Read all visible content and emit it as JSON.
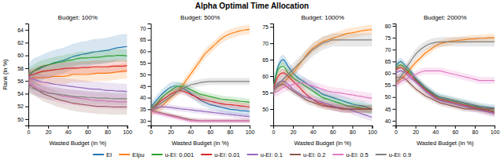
{
  "title": "Alpha Optimal Time Allocation",
  "chart_data": [
    {
      "type": "line",
      "title": "Budget: 100%",
      "xlabel": "Wasted Budget (in %)",
      "ylabel": "Rank (in %)",
      "x": [
        0,
        5,
        10,
        15,
        20,
        25,
        30,
        35,
        40,
        45,
        50,
        55,
        60,
        65,
        70,
        75,
        80,
        85,
        90,
        95,
        100
      ],
      "xlim": [
        0,
        100
      ],
      "xticks": [
        0,
        20,
        40,
        60,
        80,
        100
      ],
      "ylim": [
        49,
        65
      ],
      "yticks": [
        50,
        52,
        54,
        56,
        58,
        60,
        62,
        64
      ],
      "grid": false,
      "series": [
        {
          "name": "EI",
          "color": "#1f77b4",
          "error": 2.0,
          "values": [
            56.5,
            57.5,
            57.8,
            58.2,
            58.5,
            58.8,
            59.0,
            59.2,
            59.5,
            59.8,
            60.0,
            60.2,
            60.3,
            60.5,
            60.6,
            60.7,
            60.8,
            61.0,
            61.2,
            61.3,
            61.4
          ]
        },
        {
          "name": "EIpu",
          "color": "#ff7f0e",
          "error": 1.2,
          "values": [
            56.2,
            56.5,
            56.5,
            56.5,
            56.5,
            56.7,
            56.7,
            56.7,
            56.8,
            57.0,
            57.0,
            57.0,
            57.0,
            57.1,
            57.2,
            57.2,
            57.2,
            57.3,
            57.4,
            57.5,
            57.6
          ]
        },
        {
          "name": "u-EI: 0.001",
          "color": "#2ca02c",
          "error": 1.0,
          "values": [
            57.0,
            57.5,
            58.0,
            58.3,
            58.5,
            58.7,
            58.9,
            59.0,
            59.2,
            59.3,
            59.5,
            59.6,
            59.6,
            59.7,
            59.7,
            59.8,
            59.9,
            59.9,
            60.0,
            60.0,
            59.9
          ]
        },
        {
          "name": "u-EI: 0.01",
          "color": "#d62728",
          "error": 1.0,
          "values": [
            56.8,
            57.0,
            57.3,
            57.5,
            57.6,
            57.7,
            57.8,
            57.9,
            58.0,
            58.0,
            58.0,
            58.1,
            58.1,
            58.2,
            58.2,
            58.2,
            58.2,
            58.3,
            58.3,
            58.3,
            58.4
          ]
        },
        {
          "name": "u-EI: 0.1",
          "color": "#9467bd",
          "error": 1.2,
          "values": [
            56.5,
            56.3,
            56.0,
            55.8,
            55.7,
            55.5,
            55.4,
            55.3,
            55.2,
            55.1,
            55.0,
            54.9,
            54.8,
            54.7,
            54.7,
            54.6,
            54.5,
            54.5,
            54.4,
            54.4,
            54.3
          ]
        },
        {
          "name": "u-EI: 0.2",
          "color": "#8c564b",
          "error": 1.2,
          "values": [
            55.5,
            55.0,
            54.5,
            54.0,
            53.7,
            53.4,
            53.1,
            52.9,
            52.7,
            52.5,
            52.4,
            52.3,
            52.2,
            52.1,
            52.0,
            52.0,
            52.0,
            51.9,
            51.9,
            51.9,
            51.9
          ]
        },
        {
          "name": "u-EI: 0.5",
          "color": "#e377c2",
          "error": 1.2,
          "values": [
            55.8,
            55.3,
            54.8,
            54.5,
            54.2,
            54.0,
            53.8,
            53.6,
            53.5,
            53.4,
            53.3,
            53.2,
            53.1,
            53.0,
            52.9,
            52.9,
            52.8,
            52.8,
            52.7,
            52.7,
            52.7
          ]
        },
        {
          "name": "u-EI: 0.9",
          "color": "#7f7f7f",
          "error": 1.0,
          "values": [
            55.0,
            54.8,
            54.5,
            54.3,
            54.1,
            54.0,
            53.9,
            53.8,
            53.7,
            53.6,
            53.5,
            53.5,
            53.4,
            53.4,
            53.3,
            53.3,
            53.3,
            53.2,
            53.2,
            53.2,
            53.2
          ]
        }
      ]
    },
    {
      "type": "line",
      "title": "Budget: 500%",
      "xlabel": "Wasted Budget (in %)",
      "x": [
        0,
        5,
        10,
        15,
        20,
        25,
        30,
        35,
        40,
        45,
        50,
        55,
        60,
        65,
        70,
        75,
        80,
        85,
        90,
        95,
        100
      ],
      "xlim": [
        0,
        100
      ],
      "xticks": [
        0,
        20,
        40,
        60,
        80,
        100
      ],
      "ylim": [
        28,
        72
      ],
      "yticks": [
        30,
        35,
        40,
        45,
        50,
        55,
        60,
        65,
        70
      ],
      "grid": false,
      "series": [
        {
          "name": "EI",
          "color": "#1f77b4",
          "error": 2.0,
          "values": [
            36.0,
            38.5,
            41.0,
            43.0,
            44.5,
            45.0,
            44.5,
            43.5,
            42.0,
            40.5,
            39.0,
            38.0,
            37.0,
            36.5,
            36.0,
            35.5,
            35.0,
            34.8,
            34.5,
            34.3,
            34.0
          ]
        },
        {
          "name": "EIpu",
          "color": "#ff7f0e",
          "error": 2.0,
          "values": [
            34.0,
            35.0,
            36.0,
            38.0,
            40.0,
            42.0,
            44.0,
            47.0,
            50.0,
            53.0,
            56.0,
            59.0,
            61.0,
            63.0,
            65.0,
            66.5,
            67.5,
            68.2,
            68.8,
            69.2,
            69.5
          ]
        },
        {
          "name": "u-EI: 0.001",
          "color": "#2ca02c",
          "error": 1.5,
          "values": [
            35.5,
            37.0,
            39.5,
            41.5,
            43.0,
            44.5,
            45.0,
            44.5,
            43.5,
            42.5,
            41.5,
            41.0,
            40.5,
            40.0,
            39.5,
            39.2,
            39.0,
            38.8,
            38.5,
            38.3,
            38.0
          ]
        },
        {
          "name": "u-EI: 0.01",
          "color": "#d62728",
          "error": 1.5,
          "values": [
            35.0,
            36.5,
            38.5,
            40.0,
            41.5,
            42.5,
            43.0,
            42.5,
            41.5,
            40.5,
            39.5,
            39.0,
            38.5,
            38.0,
            37.5,
            37.2,
            37.0,
            36.8,
            36.5,
            36.3,
            36.0
          ]
        },
        {
          "name": "u-EI: 0.1",
          "color": "#9467bd",
          "error": 1.2,
          "values": [
            35.0,
            35.5,
            36.0,
            36.0,
            35.8,
            35.5,
            35.2,
            35.0,
            34.8,
            34.5,
            34.3,
            34.0,
            33.8,
            33.5,
            33.3,
            33.0,
            32.8,
            32.5,
            32.3,
            32.0,
            31.8
          ]
        },
        {
          "name": "u-EI: 0.2",
          "color": "#8c564b",
          "error": 1.0,
          "values": [
            34.5,
            34.0,
            33.5,
            33.0,
            32.5,
            32.0,
            31.5,
            31.0,
            30.5,
            30.3,
            30.0,
            30.0,
            30.0,
            30.0,
            30.0,
            30.0,
            30.0,
            30.0,
            30.0,
            30.0,
            30.0
          ]
        },
        {
          "name": "u-EI: 0.5",
          "color": "#e377c2",
          "error": 1.0,
          "values": [
            34.0,
            33.5,
            33.0,
            32.5,
            32.0,
            31.5,
            31.0,
            30.5,
            30.0,
            30.0,
            30.0,
            30.0,
            30.0,
            30.0,
            30.0,
            30.0,
            30.0,
            30.0,
            30.0,
            30.0,
            30.0
          ]
        },
        {
          "name": "u-EI: 0.9",
          "color": "#7f7f7f",
          "error": 1.5,
          "values": [
            35.0,
            36.0,
            37.5,
            39.0,
            40.5,
            42.0,
            43.5,
            44.5,
            45.5,
            46.0,
            46.5,
            46.8,
            47.0,
            47.0,
            47.0,
            47.0,
            47.0,
            47.0,
            47.0,
            47.0,
            47.0
          ]
        }
      ]
    },
    {
      "type": "line",
      "title": "Budget: 1000%",
      "xlabel": "Wasted Budget (in %)",
      "x": [
        0,
        5,
        10,
        15,
        20,
        25,
        30,
        35,
        40,
        45,
        50,
        55,
        60,
        65,
        70,
        75,
        80,
        85,
        90,
        95,
        100
      ],
      "xlim": [
        0,
        100
      ],
      "xticks": [
        0,
        20,
        40,
        60,
        80,
        100
      ],
      "ylim": [
        45,
        76
      ],
      "yticks": [
        50,
        55,
        60,
        65,
        70,
        75
      ],
      "grid": false,
      "series": [
        {
          "name": "EI",
          "color": "#1f77b4",
          "error": 1.5,
          "values": [
            56.5,
            63.0,
            65.0,
            63.0,
            61.0,
            59.5,
            58.5,
            57.5,
            56.5,
            55.5,
            54.5,
            54.0,
            53.5,
            53.0,
            52.5,
            52.0,
            51.5,
            51.2,
            51.0,
            50.5,
            50.0
          ]
        },
        {
          "name": "EIpu",
          "color": "#ff7f0e",
          "error": 1.5,
          "values": [
            56.0,
            57.0,
            58.0,
            59.5,
            61.0,
            63.0,
            65.0,
            67.0,
            68.5,
            69.5,
            70.5,
            71.0,
            71.5,
            72.0,
            72.5,
            73.0,
            73.2,
            73.5,
            73.8,
            74.0,
            74.2
          ]
        },
        {
          "name": "u-EI: 0.001",
          "color": "#2ca02c",
          "error": 1.5,
          "values": [
            56.0,
            62.0,
            63.0,
            61.0,
            59.5,
            58.5,
            57.5,
            56.5,
            55.5,
            54.5,
            53.5,
            53.0,
            52.5,
            52.0,
            51.5,
            51.0,
            50.8,
            50.5,
            50.3,
            50.0,
            50.0
          ]
        },
        {
          "name": "u-EI: 0.01",
          "color": "#d62728",
          "error": 1.2,
          "values": [
            56.0,
            60.0,
            61.0,
            60.0,
            58.5,
            57.0,
            55.5,
            54.0,
            53.0,
            52.0,
            51.5,
            51.0,
            50.8,
            50.5,
            50.3,
            50.0,
            50.0,
            50.0,
            50.0,
            50.0,
            50.0
          ]
        },
        {
          "name": "u-EI: 0.1",
          "color": "#9467bd",
          "error": 1.2,
          "values": [
            55.5,
            58.0,
            58.5,
            57.5,
            56.0,
            55.0,
            54.0,
            53.5,
            53.0,
            52.5,
            52.0,
            51.5,
            51.0,
            50.5,
            50.0,
            50.0,
            49.5,
            49.0,
            48.5,
            48.0,
            47.5
          ]
        },
        {
          "name": "u-EI: 0.2",
          "color": "#8c564b",
          "error": 1.0,
          "values": [
            55.5,
            57.0,
            57.5,
            56.5,
            55.5,
            54.5,
            53.5,
            52.5,
            52.0,
            51.5,
            51.0,
            50.8,
            50.5,
            50.3,
            50.0,
            50.0,
            50.0,
            50.0,
            50.0,
            50.0,
            50.0
          ]
        },
        {
          "name": "u-EI: 0.5",
          "color": "#e377c2",
          "error": 1.5,
          "values": [
            55.0,
            55.5,
            56.5,
            57.0,
            57.5,
            57.8,
            58.0,
            57.5,
            57.0,
            56.5,
            56.0,
            55.5,
            55.2,
            55.0,
            54.8,
            54.5,
            54.3,
            54.0,
            53.8,
            53.5,
            53.3
          ]
        },
        {
          "name": "u-EI: 0.9",
          "color": "#7f7f7f",
          "error": 2.0,
          "values": [
            55.5,
            57.5,
            59.0,
            60.5,
            62.0,
            63.5,
            65.0,
            66.5,
            68.0,
            69.0,
            70.0,
            70.5,
            71.0,
            71.0,
            71.0,
            71.0,
            71.0,
            71.0,
            71.0,
            71.0,
            71.0
          ]
        }
      ]
    },
    {
      "type": "line",
      "title": "Budget: 2000%",
      "xlabel": "Wasted Budget (in %)",
      "x": [
        0,
        5,
        10,
        15,
        20,
        25,
        30,
        35,
        40,
        45,
        50,
        55,
        60,
        65,
        70,
        75,
        80,
        85,
        90,
        95,
        100
      ],
      "xlim": [
        0,
        100
      ],
      "xticks": [
        0,
        20,
        40,
        60,
        80,
        100
      ],
      "ylim": [
        38,
        81
      ],
      "yticks": [
        40,
        45,
        50,
        55,
        60,
        65,
        70,
        75,
        80
      ],
      "grid": false,
      "series": [
        {
          "name": "EI",
          "color": "#1f77b4",
          "error": 1.5,
          "values": [
            63.0,
            65.0,
            63.0,
            61.0,
            58.0,
            56.0,
            54.0,
            52.5,
            51.0,
            50.0,
            49.5,
            49.0,
            48.5,
            48.0,
            47.5,
            47.0,
            46.5,
            46.0,
            45.8,
            45.5,
            45.3
          ]
        },
        {
          "name": "EIpu",
          "color": "#ff7f0e",
          "error": 1.5,
          "values": [
            56.0,
            57.5,
            59.5,
            62.0,
            64.5,
            66.5,
            68.5,
            70.0,
            71.5,
            72.5,
            73.0,
            73.5,
            73.8,
            74.0,
            74.2,
            74.5,
            74.5,
            74.8,
            74.8,
            75.0,
            75.0
          ]
        },
        {
          "name": "u-EI: 0.001",
          "color": "#2ca02c",
          "error": 1.5,
          "values": [
            62.0,
            63.5,
            62.0,
            60.0,
            57.5,
            55.5,
            53.5,
            52.0,
            50.5,
            49.5,
            49.0,
            48.5,
            48.0,
            47.5,
            47.0,
            46.5,
            46.0,
            45.5,
            45.0,
            44.5,
            44.0
          ]
        },
        {
          "name": "u-EI: 0.01",
          "color": "#d62728",
          "error": 1.5,
          "values": [
            61.5,
            62.5,
            61.0,
            59.0,
            57.0,
            55.0,
            53.0,
            51.5,
            50.0,
            49.0,
            48.5,
            48.0,
            47.5,
            47.0,
            46.5,
            46.0,
            45.5,
            45.0,
            44.5,
            44.0,
            43.5
          ]
        },
        {
          "name": "u-EI: 0.1",
          "color": "#9467bd",
          "error": 1.5,
          "values": [
            60.0,
            61.0,
            60.0,
            58.0,
            56.5,
            54.5,
            52.5,
            51.0,
            49.5,
            48.5,
            48.0,
            47.5,
            47.0,
            46.5,
            46.0,
            45.5,
            45.0,
            44.5,
            44.0,
            43.5,
            43.0
          ]
        },
        {
          "name": "u-EI: 0.2",
          "color": "#8c564b",
          "error": 1.2,
          "values": [
            58.0,
            58.5,
            57.5,
            55.5,
            53.5,
            52.0,
            50.5,
            49.5,
            48.5,
            47.5,
            47.0,
            46.5,
            46.0,
            45.5,
            45.0,
            45.0,
            45.0,
            45.0,
            45.0,
            45.0,
            45.0
          ]
        },
        {
          "name": "u-EI: 0.5",
          "color": "#e377c2",
          "error": 1.5,
          "values": [
            55.0,
            56.5,
            57.5,
            58.5,
            59.5,
            60.5,
            61.0,
            61.0,
            61.0,
            61.0,
            60.5,
            60.0,
            59.5,
            59.0,
            58.5,
            58.0,
            57.5,
            57.0,
            57.0,
            57.0,
            57.0
          ]
        },
        {
          "name": "u-EI: 0.9",
          "color": "#7f7f7f",
          "error": 2.0,
          "values": [
            56.0,
            58.5,
            62.0,
            65.0,
            68.0,
            70.0,
            71.5,
            72.5,
            73.0,
            73.2,
            73.3,
            73.3,
            73.3,
            73.3,
            73.3,
            73.3,
            73.3,
            73.3,
            73.3,
            73.3,
            73.3
          ]
        }
      ]
    }
  ]
}
